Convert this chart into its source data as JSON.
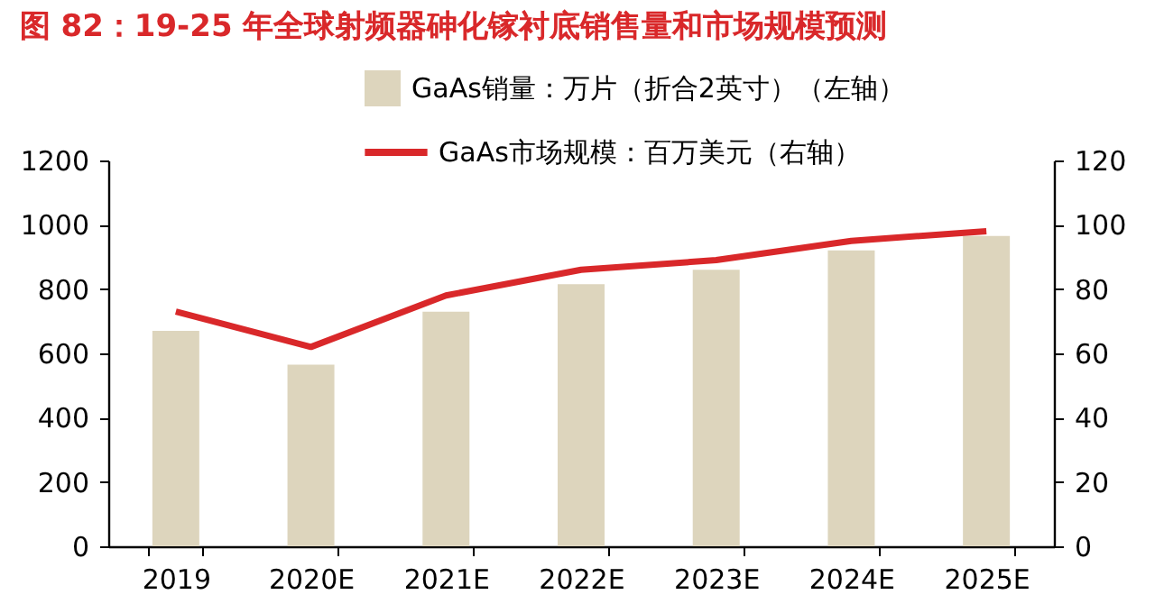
{
  "chart_data": {
    "type": "bar",
    "title": "图 82：19-25 年全球射频器砷化镓衬底销售量和市场规模预测",
    "categories": [
      "2019",
      "2020E",
      "2021E",
      "2022E",
      "2023E",
      "2024E",
      "2025E"
    ],
    "series": [
      {
        "name": "GaAs销量：万片（折合2英寸）（左轴）",
        "color": "#ddd5bd",
        "values": [
          670,
          565,
          730,
          815,
          860,
          920,
          965
        ]
      },
      {
        "name": "GaAs市场规模：百万美元（右轴）",
        "type": "line",
        "axis": "y2",
        "color": "#d9282a",
        "values": [
          73,
          62,
          78,
          86,
          89,
          95,
          98
        ]
      }
    ],
    "ylim": [
      0,
      1200
    ],
    "yticks": [
      0,
      200,
      400,
      600,
      800,
      1000,
      1200
    ],
    "y2lim": [
      0,
      120
    ],
    "y2ticks": [
      0,
      20,
      40,
      60,
      80,
      100,
      120
    ],
    "grid": false,
    "legend": "top",
    "marker": "none",
    "line_style": "solid"
  }
}
